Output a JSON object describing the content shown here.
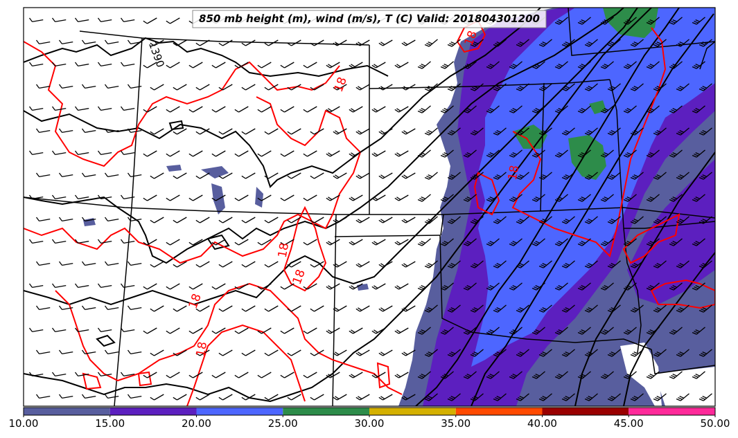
{
  "title": "850 mb height (m), wind (m/s), T (C) Valid: 201804301200",
  "colorbar": {
    "ticks": [
      "10.00",
      "15.00",
      "20.00",
      "25.00",
      "30.00",
      "35.00",
      "40.00",
      "45.00",
      "50.00"
    ],
    "colors": [
      "#585e9e",
      "#5c1fbf",
      "#4d66ff",
      "#2d8c4a",
      "#d4b000",
      "#ff4a00",
      "#990000",
      "#ff2a9a"
    ]
  },
  "colors": {
    "wind_15_20": "#5c1fbf",
    "wind_10_15": "#585e9e",
    "wind_20_25": "#4d66ff",
    "wind_25_30": "#2d8c4a",
    "temperature_contour": "#ff0000",
    "height_contour": "#000000"
  },
  "contour_labels": {
    "height": [
      "1390"
    ],
    "temperature": [
      "18",
      "18",
      "18",
      "18",
      "18",
      "18",
      "18"
    ]
  }
}
